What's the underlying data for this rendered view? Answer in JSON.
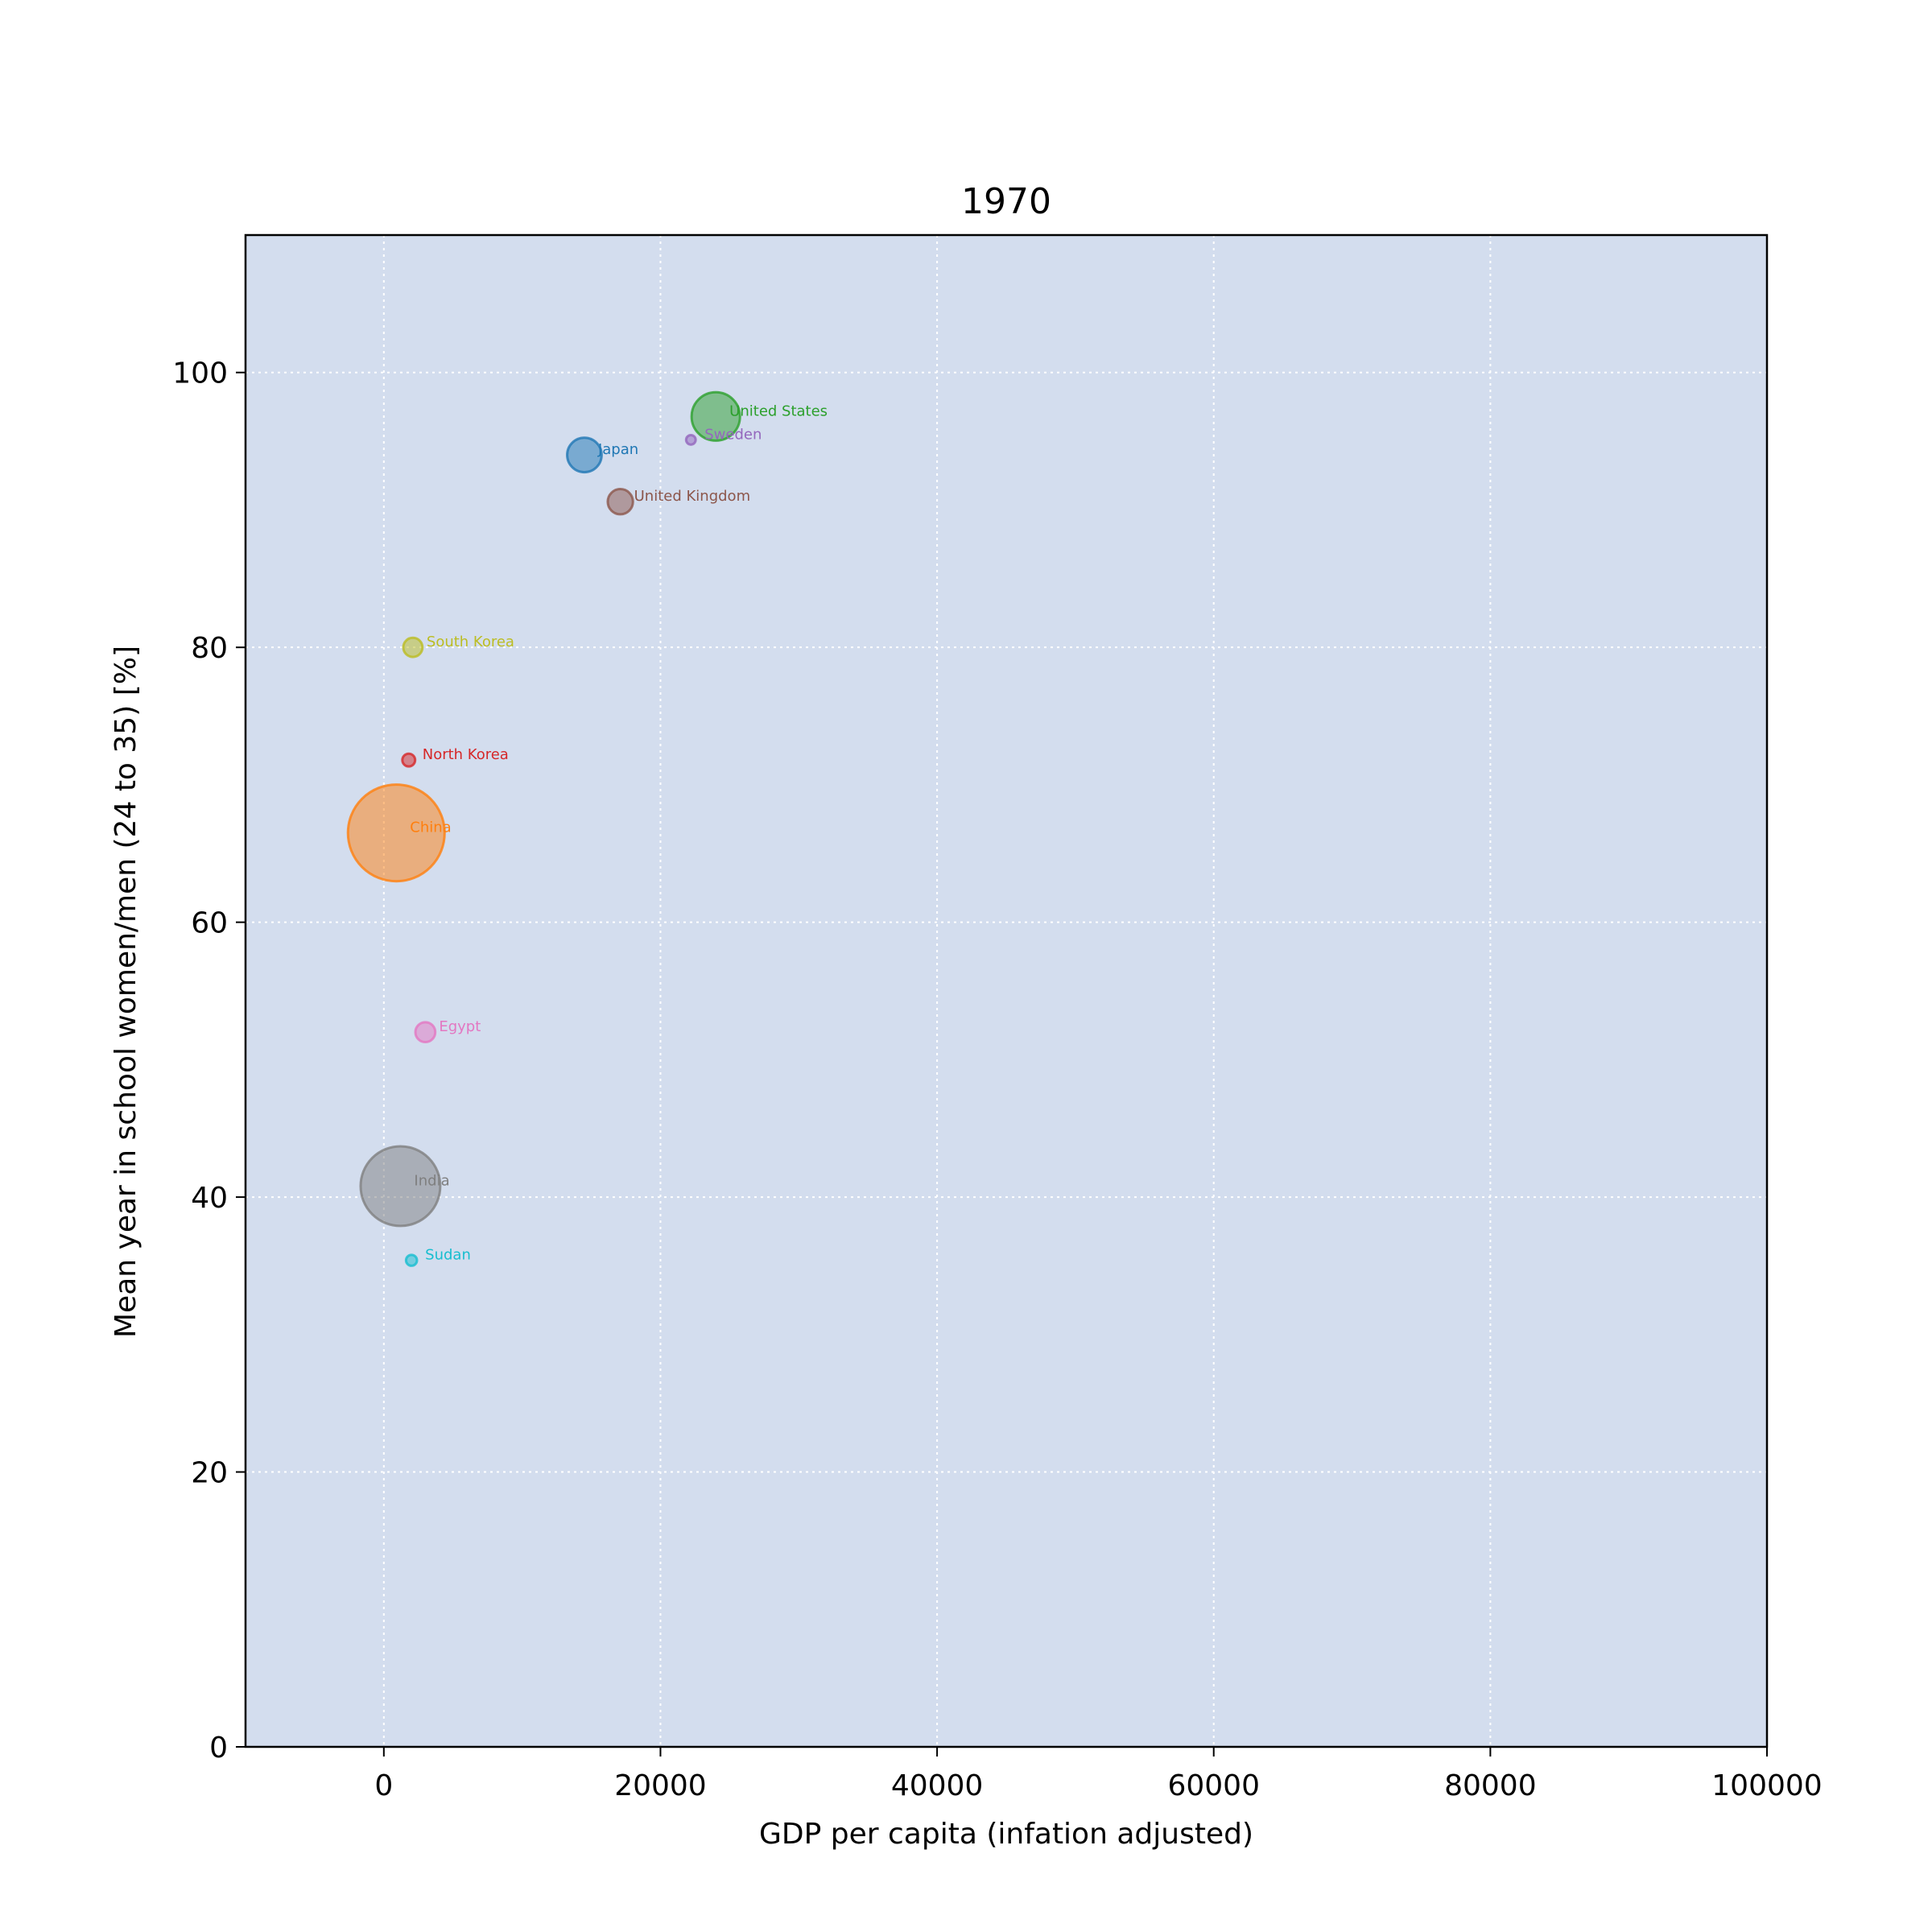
{
  "chart_data": {
    "type": "scatter",
    "title": "1970",
    "xlabel": "GDP per capita (infation adjusted)",
    "ylabel": "Mean year in school women/men (24 to 35) [%]",
    "xlim": [
      -10000,
      100000
    ],
    "ylim": [
      0,
      110
    ],
    "xticks": [
      0,
      20000,
      40000,
      60000,
      80000,
      100000
    ],
    "yticks": [
      0,
      20,
      40,
      60,
      80,
      100
    ],
    "grid": true,
    "grid_style": "dotted",
    "plot_background": "#d3ddee",
    "bubble_opacity": 0.5,
    "points": [
      {
        "name": "China",
        "x": 900,
        "y": 66.5,
        "population": 818,
        "color": "#ff7f0e"
      },
      {
        "name": "India",
        "x": 1200,
        "y": 40.8,
        "population": 555,
        "color": "#7f7f7f"
      },
      {
        "name": "United States",
        "x": 24000,
        "y": 96.8,
        "population": 205,
        "color": "#2ca02c"
      },
      {
        "name": "Japan",
        "x": 14500,
        "y": 94.0,
        "population": 104,
        "color": "#1f77b4"
      },
      {
        "name": "United Kingdom",
        "x": 17100,
        "y": 90.6,
        "population": 55.6,
        "color": "#8c564b"
      },
      {
        "name": "Egypt",
        "x": 3000,
        "y": 52.0,
        "population": 34.5,
        "color": "#e377c2"
      },
      {
        "name": "South Korea",
        "x": 2100,
        "y": 80.0,
        "population": 32.2,
        "color": "#bcbd22"
      },
      {
        "name": "North Korea",
        "x": 1800,
        "y": 71.8,
        "population": 14.4,
        "color": "#d62728"
      },
      {
        "name": "Sudan",
        "x": 2000,
        "y": 35.4,
        "population": 10.5,
        "color": "#17becf"
      },
      {
        "name": "Sweden",
        "x": 22200,
        "y": 95.1,
        "population": 8.0,
        "color": "#9467bd"
      }
    ]
  }
}
